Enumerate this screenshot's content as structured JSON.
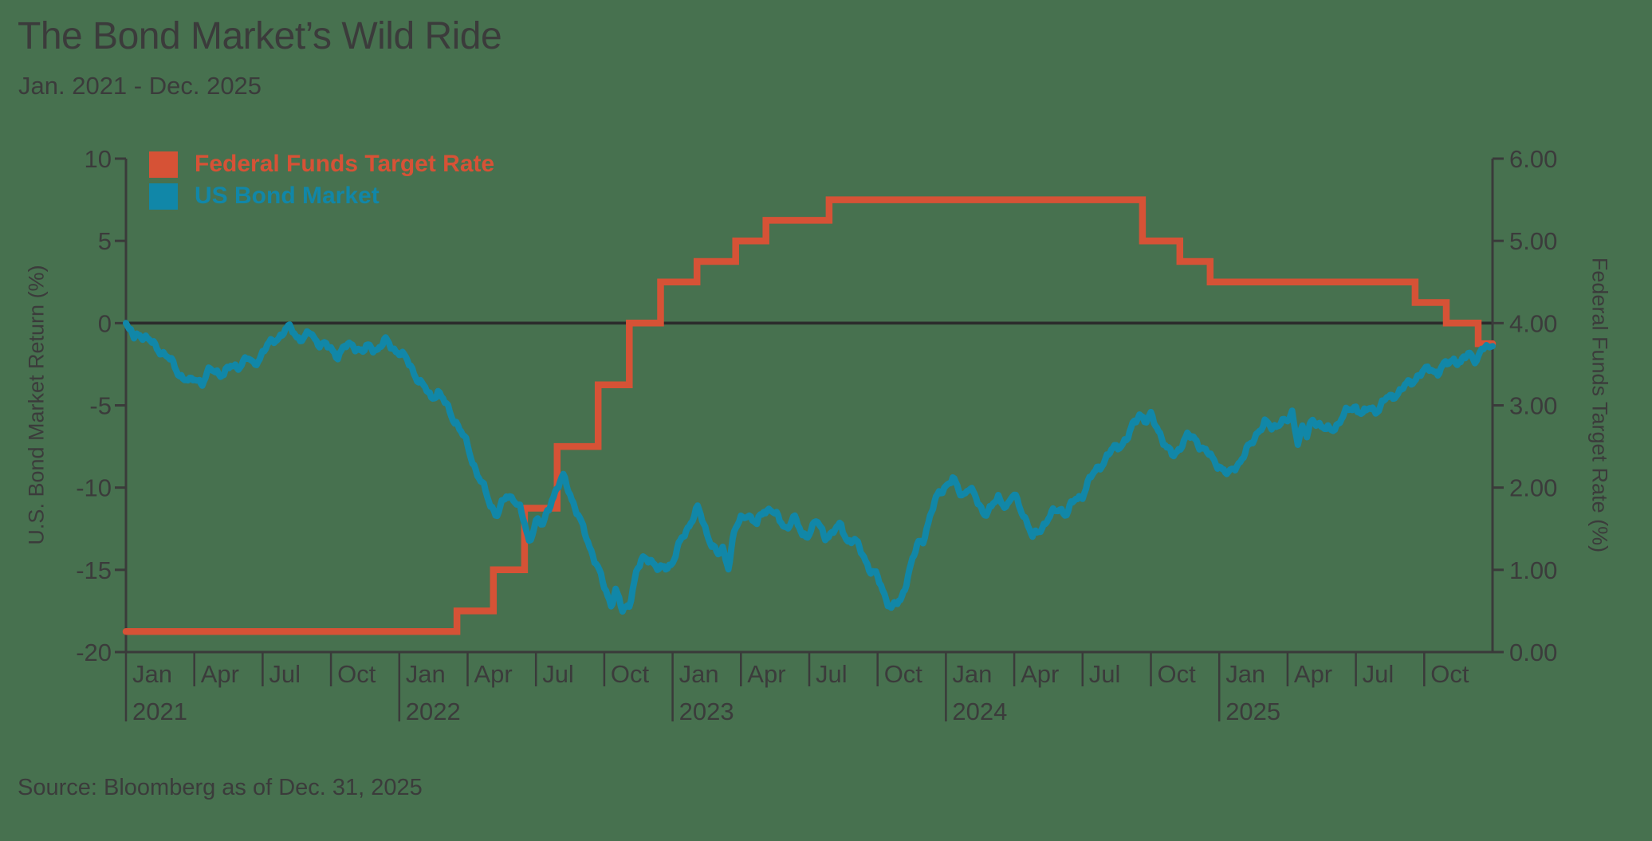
{
  "page": {
    "title": "The Bond Market’s Wild Ride",
    "subtitle": "Jan. 2021 - Dec. 2025",
    "source": "Source: Bloomberg as of Dec. 31, 2025",
    "background_color": "#47714F",
    "text_color": "#3B3B3B",
    "axis_color": "#3A3A3A",
    "zero_line_color": "#2B2B2B"
  },
  "chart_data": {
    "type": "line",
    "title": "The Bond Market’s Wild Ride",
    "subtitle": "Jan. 2021 - Dec. 2025",
    "source": "Source: Bloomberg as of Dec. 31, 2025",
    "legend_position": "top-left-inside",
    "grid": false,
    "x_axis": {
      "quarter_labels": [
        "Jan",
        "Apr",
        "Jul",
        "Oct"
      ],
      "years": [
        "2021",
        "2022",
        "2023",
        "2024",
        "2025"
      ]
    },
    "left_axis": {
      "label": "U.S. Bond Market Return (%)",
      "tick_labels": [
        "10",
        "5",
        "0",
        "-5",
        "-10",
        "-15",
        "-20"
      ],
      "tick_values": [
        10,
        5,
        0,
        -5,
        -10,
        -15,
        -20
      ],
      "range": [
        -20,
        10
      ]
    },
    "right_axis": {
      "label": "Federal Funds Target Rate (%)",
      "tick_labels": [
        "6.00",
        "5.00",
        "4.00",
        "3.00",
        "2.00",
        "1.00",
        "0.00"
      ],
      "tick_values": [
        6,
        5,
        4,
        3,
        2,
        1,
        0
      ],
      "range": [
        0,
        6
      ]
    },
    "series": [
      {
        "name": "Federal Funds Target Rate",
        "axis": "right",
        "style": "step",
        "color": "#D65236",
        "points": [
          [
            0,
            0.25
          ],
          [
            14.53,
            0.5
          ],
          [
            16.13,
            1.0
          ],
          [
            17.5,
            1.75
          ],
          [
            18.93,
            2.5
          ],
          [
            20.73,
            3.25
          ],
          [
            22.1,
            4.0
          ],
          [
            23.47,
            4.5
          ],
          [
            25.07,
            4.75
          ],
          [
            26.77,
            5.0
          ],
          [
            28.1,
            5.25
          ],
          [
            30.87,
            5.5
          ],
          [
            44.63,
            5.0
          ],
          [
            46.27,
            4.75
          ],
          [
            47.6,
            4.5
          ],
          [
            56.6,
            4.25
          ],
          [
            57.97,
            4.0
          ],
          [
            59.37,
            3.75
          ],
          [
            60,
            3.75
          ]
        ]
      },
      {
        "name": "US Bond Market",
        "axis": "left",
        "style": "line",
        "color": "#1187A8",
        "points": [
          [
            0,
            0
          ],
          [
            0.35,
            -0.9
          ],
          [
            0.6,
            -0.55
          ],
          [
            1,
            -1.1
          ],
          [
            1.5,
            -1.6
          ],
          [
            2,
            -2.4
          ],
          [
            2.5,
            -3.3
          ],
          [
            2.8,
            -3.65
          ],
          [
            3.1,
            -3.3
          ],
          [
            3.35,
            -3.6
          ],
          [
            3.7,
            -2.9
          ],
          [
            4,
            -2.9
          ],
          [
            4.3,
            -3.1
          ],
          [
            4.6,
            -2.7
          ],
          [
            5,
            -2.5
          ],
          [
            5.3,
            -2.2
          ],
          [
            5.6,
            -2.5
          ],
          [
            6,
            -1.8
          ],
          [
            6.5,
            -1.0
          ],
          [
            7,
            -0.5
          ],
          [
            7.25,
            -0.3
          ],
          [
            7.5,
            -0.75
          ],
          [
            7.8,
            -1.0
          ],
          [
            8.1,
            -0.6
          ],
          [
            8.5,
            -1.2
          ],
          [
            9,
            -1.6
          ],
          [
            9.3,
            -1.9
          ],
          [
            9.6,
            -1.5
          ],
          [
            10,
            -1.3
          ],
          [
            10.4,
            -1.75
          ],
          [
            10.7,
            -1.45
          ],
          [
            11,
            -1.55
          ],
          [
            11.4,
            -1.15
          ],
          [
            11.7,
            -1.45
          ],
          [
            12,
            -1.75
          ],
          [
            12.5,
            -2.6
          ],
          [
            13,
            -3.8
          ],
          [
            13.4,
            -4.5
          ],
          [
            13.7,
            -4.15
          ],
          [
            14,
            -4.9
          ],
          [
            14.5,
            -6.0
          ],
          [
            15,
            -7.5
          ],
          [
            15.5,
            -9.4
          ],
          [
            16,
            -11.0
          ],
          [
            16.3,
            -11.6
          ],
          [
            16.7,
            -10.6
          ],
          [
            17,
            -10.5
          ],
          [
            17.3,
            -11.3
          ],
          [
            17.7,
            -13.3
          ],
          [
            18,
            -11.9
          ],
          [
            18.3,
            -12.4
          ],
          [
            18.7,
            -10.6
          ],
          [
            19.2,
            -9.4
          ],
          [
            19.5,
            -10.3
          ],
          [
            20,
            -12.3
          ],
          [
            20.5,
            -14.0
          ],
          [
            21,
            -16.1
          ],
          [
            21.3,
            -17.0
          ],
          [
            21.5,
            -16.2
          ],
          [
            21.8,
            -17.6
          ],
          [
            22.1,
            -17.0
          ],
          [
            22.4,
            -15.2
          ],
          [
            22.7,
            -14.4
          ],
          [
            23,
            -14.2
          ],
          [
            23.4,
            -15.1
          ],
          [
            23.7,
            -14.8
          ],
          [
            24,
            -14.5
          ],
          [
            24.4,
            -13.2
          ],
          [
            24.8,
            -12.0
          ],
          [
            25.1,
            -11.3
          ],
          [
            25.5,
            -12.7
          ],
          [
            26,
            -14.2
          ],
          [
            26.2,
            -13.8
          ],
          [
            26.45,
            -14.7
          ],
          [
            26.7,
            -12.7
          ],
          [
            27,
            -12.0
          ],
          [
            27.3,
            -11.5
          ],
          [
            27.7,
            -12.3
          ],
          [
            28,
            -11.4
          ],
          [
            28.3,
            -11.2
          ],
          [
            28.7,
            -12.1
          ],
          [
            29,
            -12.4
          ],
          [
            29.3,
            -11.8
          ],
          [
            29.7,
            -12.9
          ],
          [
            30,
            -12.7
          ],
          [
            30.3,
            -12.1
          ],
          [
            30.7,
            -12.9
          ],
          [
            31,
            -12.8
          ],
          [
            31.4,
            -12.3
          ],
          [
            31.7,
            -13.2
          ],
          [
            32,
            -13.3
          ],
          [
            32.4,
            -14.1
          ],
          [
            32.7,
            -15.1
          ],
          [
            33,
            -15.5
          ],
          [
            33.3,
            -16.4
          ],
          [
            33.6,
            -17.4
          ],
          [
            34,
            -16.9
          ],
          [
            34.4,
            -15.0
          ],
          [
            34.8,
            -13.4
          ],
          [
            35,
            -13.1
          ],
          [
            35.3,
            -11.8
          ],
          [
            35.7,
            -10.3
          ],
          [
            36,
            -9.8
          ],
          [
            36.3,
            -9.6
          ],
          [
            36.7,
            -10.4
          ],
          [
            37,
            -10.0
          ],
          [
            37.4,
            -10.9
          ],
          [
            37.7,
            -11.5
          ],
          [
            38,
            -11.3
          ],
          [
            38.3,
            -10.6
          ],
          [
            38.7,
            -11.1
          ],
          [
            39,
            -10.5
          ],
          [
            39.4,
            -11.5
          ],
          [
            39.8,
            -13.1
          ],
          [
            40,
            -12.7
          ],
          [
            40.3,
            -12.2
          ],
          [
            40.7,
            -11.6
          ],
          [
            41,
            -11.2
          ],
          [
            41.3,
            -11.6
          ],
          [
            41.7,
            -10.7
          ],
          [
            42,
            -10.4
          ],
          [
            42.3,
            -9.6
          ],
          [
            42.7,
            -8.7
          ],
          [
            43,
            -8.3
          ],
          [
            43.4,
            -7.6
          ],
          [
            43.7,
            -7.3
          ],
          [
            44,
            -7.0
          ],
          [
            44.2,
            -6.3
          ],
          [
            44.5,
            -5.4
          ],
          [
            44.8,
            -6.0
          ],
          [
            45,
            -5.7
          ],
          [
            45.4,
            -6.6
          ],
          [
            45.7,
            -7.7
          ],
          [
            46,
            -8.1
          ],
          [
            46.3,
            -7.4
          ],
          [
            46.6,
            -6.9
          ],
          [
            47,
            -7.1
          ],
          [
            47.4,
            -7.8
          ],
          [
            47.7,
            -8.3
          ],
          [
            48,
            -8.6
          ],
          [
            48.4,
            -9.3
          ],
          [
            48.7,
            -8.7
          ],
          [
            49,
            -8.2
          ],
          [
            49.4,
            -7.4
          ],
          [
            49.7,
            -6.5
          ],
          [
            50,
            -6.1
          ],
          [
            50.3,
            -6.4
          ],
          [
            50.7,
            -5.9
          ],
          [
            51,
            -6.1
          ],
          [
            51.2,
            -5.5
          ],
          [
            51.45,
            -7.1
          ],
          [
            51.65,
            -6.3
          ],
          [
            51.85,
            -7.0
          ],
          [
            52.1,
            -5.8
          ],
          [
            52.4,
            -6.1
          ],
          [
            52.7,
            -6.6
          ],
          [
            53,
            -6.4
          ],
          [
            53.3,
            -5.9
          ],
          [
            53.7,
            -5.3
          ],
          [
            54,
            -5.0
          ],
          [
            54.3,
            -5.6
          ],
          [
            54.6,
            -5.2
          ],
          [
            55,
            -5.2
          ],
          [
            55.3,
            -4.7
          ],
          [
            55.7,
            -4.3
          ],
          [
            56,
            -4.1
          ],
          [
            56.3,
            -3.7
          ],
          [
            56.7,
            -3.2
          ],
          [
            57,
            -3.0
          ],
          [
            57.3,
            -2.7
          ],
          [
            57.6,
            -3.0
          ],
          [
            58,
            -2.5
          ],
          [
            58.3,
            -2.1
          ],
          [
            58.6,
            -2.5
          ],
          [
            59,
            -1.8
          ],
          [
            59.3,
            -2.2
          ],
          [
            59.6,
            -1.6
          ],
          [
            60,
            -1.4
          ]
        ]
      }
    ]
  }
}
